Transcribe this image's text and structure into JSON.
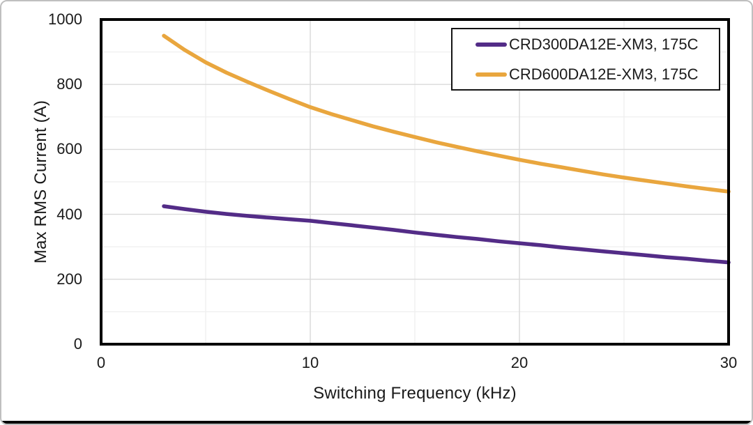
{
  "chart_data": {
    "type": "line",
    "title": "",
    "xlabel": "Switching Frequency (kHz)",
    "ylabel": "Max RMS Current (A)",
    "xlim": [
      0,
      30
    ],
    "ylim": [
      0,
      1000
    ],
    "x_ticks": [
      0,
      10,
      20,
      30
    ],
    "y_ticks": [
      0,
      200,
      400,
      600,
      800,
      1000
    ],
    "x_minor_step": 5,
    "y_minor_step": 100,
    "grid": true,
    "legend_position": "top-right",
    "colors": {
      "major_grid": "#d9d9d9",
      "minor_grid": "#f0f0f0",
      "axis_frame": "#000000",
      "text": "#1a1a1a"
    },
    "series": [
      {
        "name": "CRD300DA12E-XM3, 175C",
        "color": "#532c87",
        "x": [
          3,
          4,
          5,
          6,
          7,
          8,
          9,
          10,
          11,
          12,
          13,
          14,
          15,
          16,
          17,
          18,
          19,
          20,
          21,
          22,
          23,
          24,
          25,
          26,
          27,
          28,
          29,
          30
        ],
        "y": [
          425,
          416,
          408,
          401,
          395,
          390,
          385,
          380,
          373,
          366,
          359,
          352,
          344,
          337,
          330,
          324,
          317,
          311,
          305,
          298,
          292,
          286,
          280,
          274,
          268,
          263,
          257,
          252
        ]
      },
      {
        "name": "CRD600DA12E-XM3, 175C",
        "color": "#e9a63e",
        "x": [
          3,
          4,
          5,
          6,
          7,
          8,
          9,
          10,
          11,
          12,
          13,
          14,
          15,
          16,
          17,
          18,
          19,
          20,
          21,
          22,
          23,
          24,
          25,
          26,
          27,
          28,
          29,
          30
        ],
        "y": [
          950,
          906,
          868,
          836,
          808,
          781,
          755,
          730,
          709,
          690,
          671,
          654,
          638,
          622,
          608,
          594,
          581,
          568,
          556,
          545,
          534,
          523,
          513,
          504,
          495,
          486,
          478,
          470
        ]
      }
    ]
  }
}
